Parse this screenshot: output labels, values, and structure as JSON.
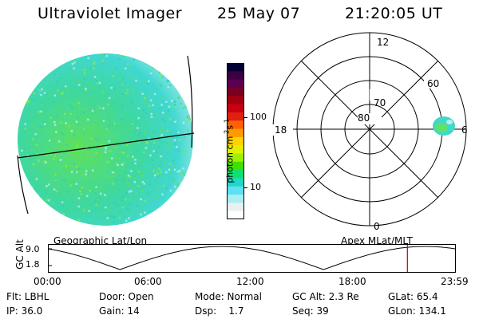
{
  "header": {
    "title": "Ultraviolet Imager",
    "date": "25 May 07",
    "time": "21:20:05 UT"
  },
  "colorbar": {
    "unit_label": "photon cm-2s-1",
    "ticks": [
      "100",
      "10"
    ],
    "colors": [
      "#000033",
      "#3a0040",
      "#5a0050",
      "#7a0020",
      "#a00010",
      "#c80010",
      "#e02010",
      "#ff6000",
      "#ff9a00",
      "#ffd200",
      "#e0f000",
      "#9ff000",
      "#40e000",
      "#10e070",
      "#20d8c8",
      "#60e0f0",
      "#a8f0f0",
      "#e8f0f0",
      "#ffffff"
    ]
  },
  "polar_plot": {
    "mlt_labels": {
      "top": "12",
      "left": "18",
      "right": "6",
      "bottom": "0"
    },
    "lat_labels": [
      "60",
      "70",
      "80"
    ]
  },
  "timeline": {
    "y_axis_label": "GC Alt",
    "y_ticks": [
      "9.0",
      "1.8"
    ],
    "left_label": "Geographic Lat/Lon",
    "right_label": "Apex MLat/MLT",
    "x_ticks": [
      "00:00",
      "06:00",
      "12:00",
      "18:00",
      "23:59"
    ],
    "current_time_fraction": 0.881
  },
  "info": {
    "flt": "Flt: LBHL",
    "ip": "IP: 36.0",
    "door": "Door: Open",
    "gain": "Gain: 14",
    "mode": "Mode: Normal",
    "dsp": "Dsp:    1.7",
    "gc_alt": "GC Alt: 2.3 Re",
    "seq": "Seq: 39",
    "glat": "GLat: 65.4",
    "glon": "GLon: 134.1"
  }
}
